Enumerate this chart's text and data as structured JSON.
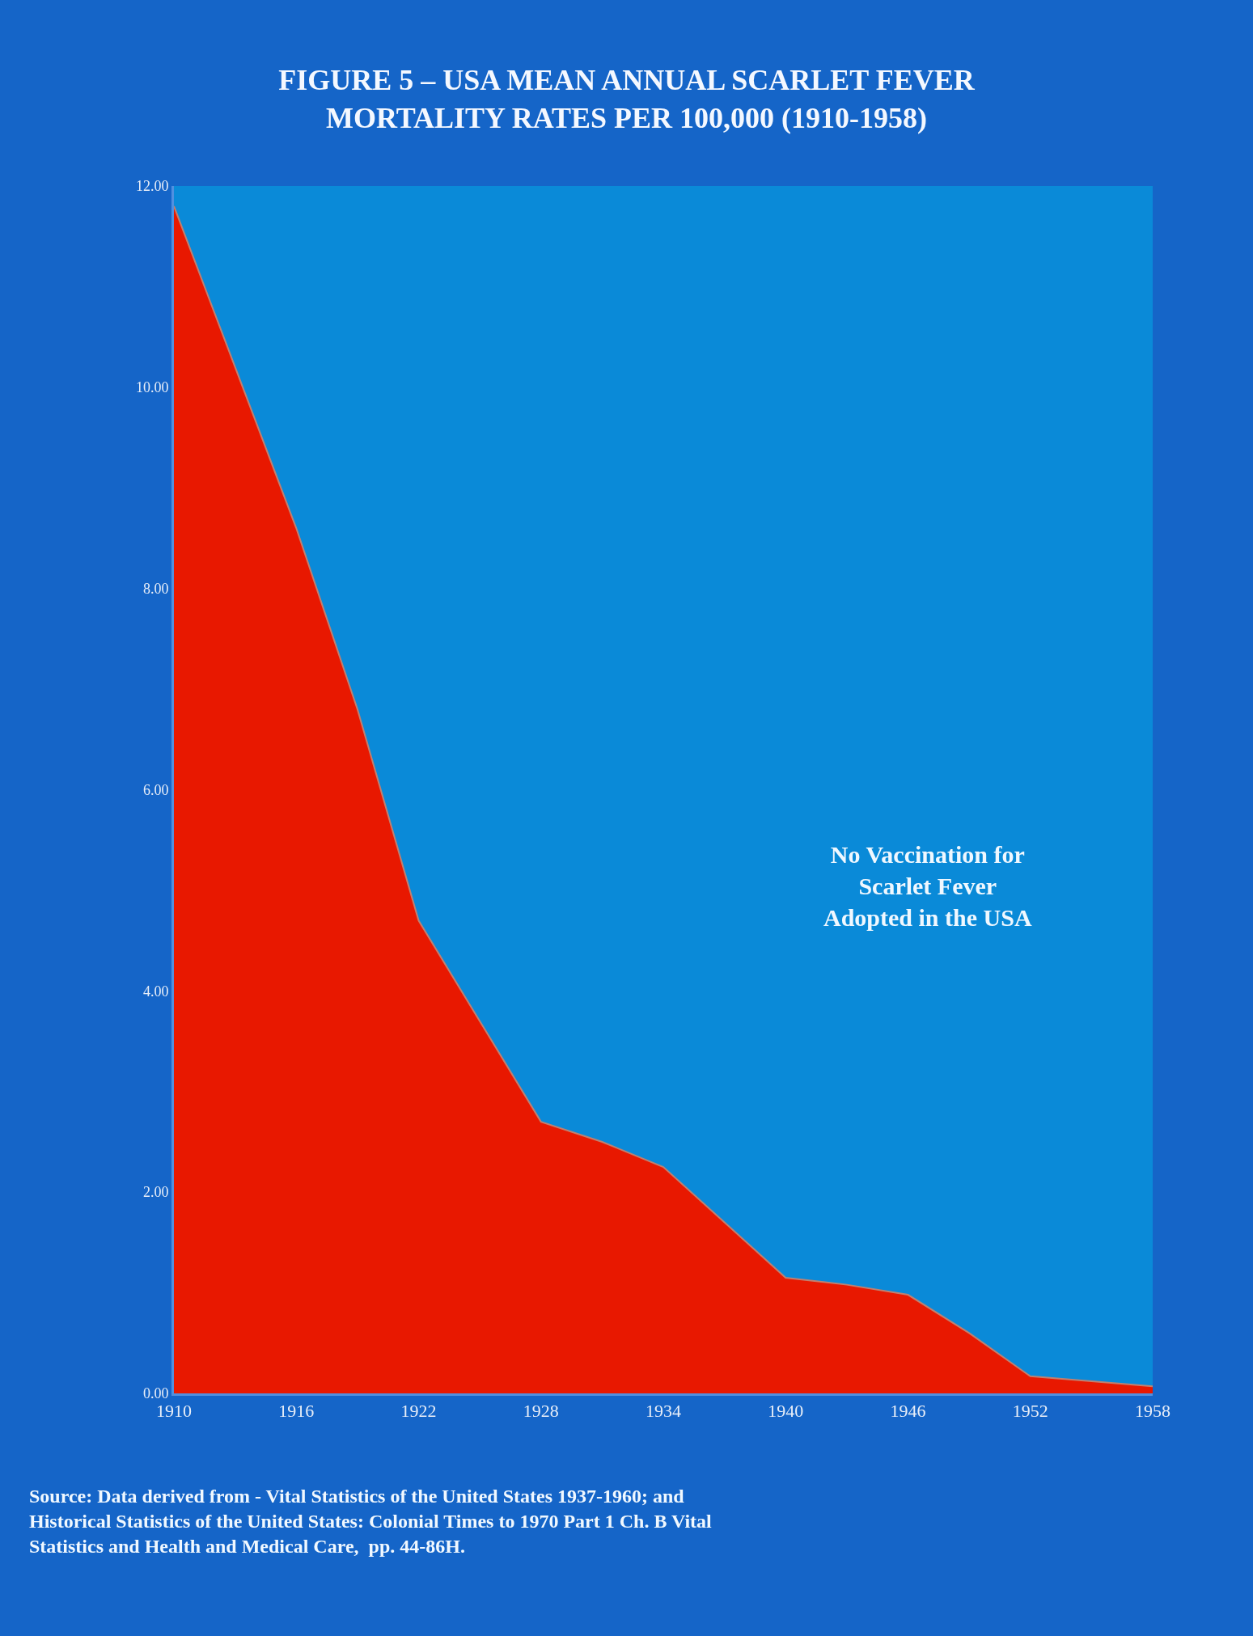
{
  "chart_data": {
    "type": "area",
    "title": "FIGURE 5 – USA MEAN ANNUAL SCARLET FEVER\nMORTALITY RATES PER 100,000 (1910-1958)",
    "x": [
      1910,
      1913,
      1916,
      1919,
      1922,
      1925,
      1928,
      1931,
      1934,
      1937,
      1940,
      1943,
      1946,
      1949,
      1952,
      1955,
      1958
    ],
    "series": [
      {
        "color": "#e81800",
        "values": [
          11.8,
          10.2,
          8.6,
          6.8,
          4.7,
          3.7,
          2.7,
          2.5,
          2.25,
          1.7,
          1.15,
          1.08,
          0.98,
          0.6,
          0.17,
          0.12,
          0.07
        ]
      }
    ],
    "xlim": [
      1910,
      1958
    ],
    "xticks": [
      1910,
      1916,
      1922,
      1928,
      1934,
      1940,
      1946,
      1952,
      1958
    ],
    "ylim": [
      0,
      12
    ],
    "yticks": [
      {
        "value": 0,
        "label": "0.00"
      },
      {
        "value": 2,
        "label": "2.00"
      },
      {
        "value": 4,
        "label": "4.00"
      },
      {
        "value": 6,
        "label": "6.00"
      },
      {
        "value": 8,
        "label": "8.00"
      },
      {
        "value": 10,
        "label": "10.00"
      },
      {
        "value": 12,
        "label": "12.00"
      }
    ],
    "grid": false,
    "annotations": [
      "No Vaccination for\nScarlet Fever\nAdopted in the USA",
      "Source: Data derived from - Vital Statistics of the United States 1937-1960; and\nHistorical Statistics of the United States: Colonial Times to 1970 Part 1 Ch. B Vital\nStatistics and Health and Medical Care,  pp. 44-86H."
    ]
  }
}
